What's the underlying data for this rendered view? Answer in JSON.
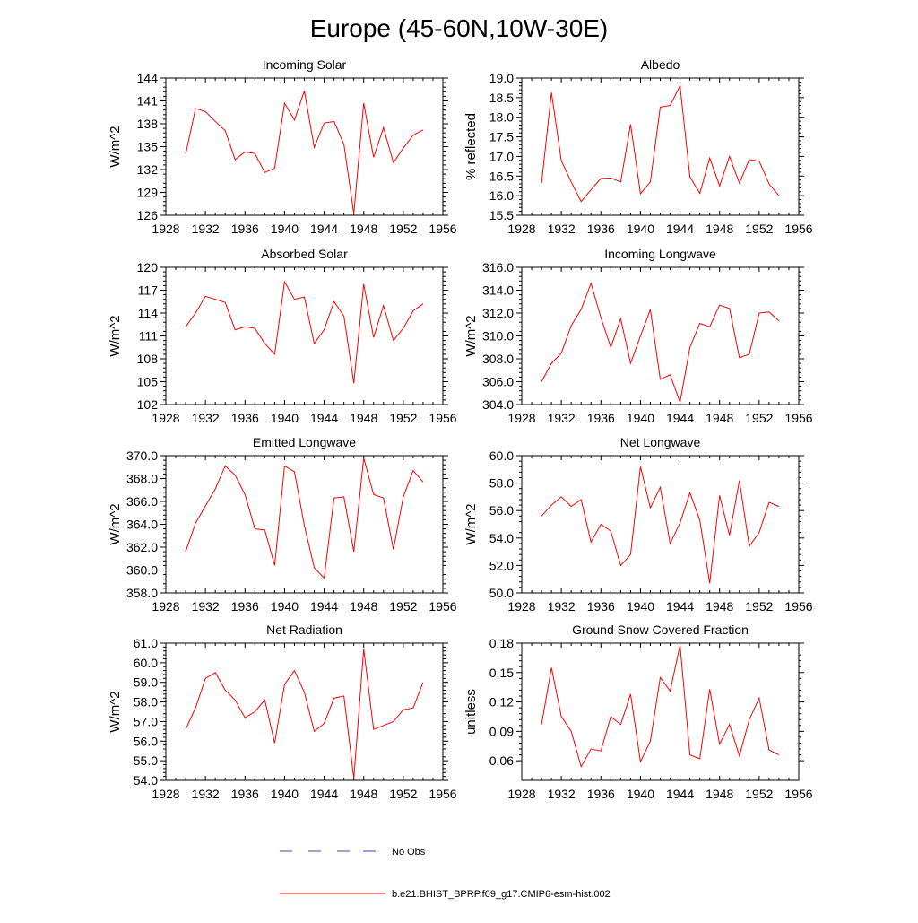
{
  "figure": {
    "title": "Europe (45-60N,10W-30E)",
    "line_color": "#ff0000",
    "obs_color": "#4040c0"
  },
  "legend": {
    "obs_label": "No Obs",
    "model_label": "b.e21.BHIST_BPRP.f09_g17.CMIP6-esm-hist.002"
  },
  "chart_data": [
    {
      "type": "line",
      "title": "Incoming Solar",
      "xlabel": "",
      "ylabel": "W/m^2",
      "xlim": [
        1928,
        1956
      ],
      "ylim": [
        126,
        144
      ],
      "xticks": [
        1928,
        1932,
        1936,
        1940,
        1944,
        1948,
        1952,
        1956
      ],
      "xtick_labels": [
        "1928",
        "1932",
        "1936",
        "1940",
        "1944",
        "1948",
        "1952",
        "1956"
      ],
      "yticks": [
        126,
        129,
        132,
        135,
        138,
        141,
        144
      ],
      "ytick_labels": [
        "126",
        "129",
        "132",
        "135",
        "138",
        "141",
        "144"
      ],
      "x": [
        1930,
        1931,
        1932,
        1933,
        1934,
        1935,
        1936,
        1937,
        1938,
        1939,
        1940,
        1941,
        1942,
        1943,
        1944,
        1945,
        1946,
        1947,
        1948,
        1949,
        1950,
        1951,
        1952,
        1953,
        1954
      ],
      "values": [
        134.0,
        140.0,
        139.6,
        138.3,
        137.1,
        133.3,
        134.3,
        134.1,
        131.6,
        132.2,
        140.7,
        138.5,
        142.3,
        134.9,
        138.1,
        138.3,
        135.3,
        126.2,
        140.7,
        133.6,
        137.5,
        132.9,
        134.8,
        136.5,
        137.2
      ]
    },
    {
      "type": "line",
      "title": "Albedo",
      "xlabel": "",
      "ylabel": "% reflected",
      "xlim": [
        1928,
        1956
      ],
      "ylim": [
        15.5,
        19.0
      ],
      "xticks": [
        1928,
        1932,
        1936,
        1940,
        1944,
        1948,
        1952,
        1956
      ],
      "xtick_labels": [
        "1928",
        "1932",
        "1936",
        "1940",
        "1944",
        "1948",
        "1952",
        "1956"
      ],
      "yticks": [
        15.5,
        16.0,
        16.5,
        17.0,
        17.5,
        18.0,
        18.5,
        19.0
      ],
      "ytick_labels": [
        "15.5",
        "16.0",
        "16.5",
        "17.0",
        "17.5",
        "18.0",
        "18.5",
        "19.0"
      ],
      "x": [
        1930,
        1931,
        1932,
        1933,
        1934,
        1935,
        1936,
        1937,
        1938,
        1939,
        1940,
        1941,
        1942,
        1943,
        1944,
        1945,
        1946,
        1947,
        1948,
        1949,
        1950,
        1951,
        1952,
        1953,
        1954
      ],
      "values": [
        16.32,
        18.63,
        16.89,
        16.35,
        15.85,
        16.15,
        16.44,
        16.45,
        16.35,
        17.82,
        16.05,
        16.35,
        18.26,
        18.3,
        18.8,
        16.48,
        16.06,
        16.96,
        16.25,
        17.0,
        16.32,
        16.92,
        16.88,
        16.3,
        16.0
      ]
    },
    {
      "type": "line",
      "title": "Absorbed Solar",
      "xlabel": "",
      "ylabel": "W/m^2",
      "xlim": [
        1928,
        1956
      ],
      "ylim": [
        102,
        120
      ],
      "xticks": [
        1928,
        1932,
        1936,
        1940,
        1944,
        1948,
        1952,
        1956
      ],
      "xtick_labels": [
        "1928",
        "1932",
        "1936",
        "1940",
        "1944",
        "1948",
        "1952",
        "1956"
      ],
      "yticks": [
        102,
        105,
        108,
        111,
        114,
        117,
        120
      ],
      "ytick_labels": [
        "102",
        "105",
        "108",
        "111",
        "114",
        "117",
        "120"
      ],
      "x": [
        1930,
        1931,
        1932,
        1933,
        1934,
        1935,
        1936,
        1937,
        1938,
        1939,
        1940,
        1941,
        1942,
        1943,
        1944,
        1945,
        1946,
        1947,
        1948,
        1949,
        1950,
        1951,
        1952,
        1953,
        1954
      ],
      "values": [
        112.2,
        114.0,
        116.2,
        115.8,
        115.4,
        111.8,
        112.2,
        112.0,
        110.0,
        108.6,
        118.1,
        115.8,
        116.1,
        110.0,
        111.8,
        115.5,
        113.6,
        104.8,
        117.8,
        110.8,
        115.0,
        110.4,
        112.0,
        114.3,
        115.2
      ]
    },
    {
      "type": "line",
      "title": "Incoming Longwave",
      "xlabel": "",
      "ylabel": "W/m^2",
      "xlim": [
        1928,
        1956
      ],
      "ylim": [
        304.0,
        316.0
      ],
      "xticks": [
        1928,
        1932,
        1936,
        1940,
        1944,
        1948,
        1952,
        1956
      ],
      "xtick_labels": [
        "1928",
        "1932",
        "1936",
        "1940",
        "1944",
        "1948",
        "1952",
        "1956"
      ],
      "yticks": [
        304.0,
        306.0,
        308.0,
        310.0,
        312.0,
        314.0,
        316.0
      ],
      "ytick_labels": [
        "304.0",
        "306.0",
        "308.0",
        "310.0",
        "312.0",
        "314.0",
        "316.0"
      ],
      "x": [
        1930,
        1931,
        1932,
        1933,
        1934,
        1935,
        1936,
        1937,
        1938,
        1939,
        1940,
        1941,
        1942,
        1943,
        1944,
        1945,
        1946,
        1947,
        1948,
        1949,
        1950,
        1951,
        1952,
        1953,
        1954
      ],
      "values": [
        306.0,
        307.6,
        308.5,
        310.9,
        312.3,
        314.6,
        311.6,
        309.0,
        311.5,
        307.6,
        310.0,
        312.3,
        306.2,
        306.6,
        304.2,
        309.0,
        311.1,
        310.8,
        312.7,
        312.4,
        308.1,
        308.4,
        312.0,
        312.1,
        311.3
      ]
    },
    {
      "type": "line",
      "title": "Emitted Longwave",
      "xlabel": "",
      "ylabel": "W/m^2",
      "xlim": [
        1928,
        1956
      ],
      "ylim": [
        358.0,
        370.0
      ],
      "xticks": [
        1928,
        1932,
        1936,
        1940,
        1944,
        1948,
        1952,
        1956
      ],
      "xtick_labels": [
        "1928",
        "1932",
        "1936",
        "1940",
        "1944",
        "1948",
        "1952",
        "1956"
      ],
      "yticks": [
        358.0,
        360.0,
        362.0,
        364.0,
        366.0,
        368.0,
        370.0
      ],
      "ytick_labels": [
        "358.0",
        "360.0",
        "362.0",
        "364.0",
        "366.0",
        "368.0",
        "370.0"
      ],
      "x": [
        1930,
        1931,
        1932,
        1933,
        1934,
        1935,
        1936,
        1937,
        1938,
        1939,
        1940,
        1941,
        1942,
        1943,
        1944,
        1945,
        1946,
        1947,
        1948,
        1949,
        1950,
        1951,
        1952,
        1953,
        1954
      ],
      "values": [
        361.6,
        364.1,
        365.6,
        367.1,
        369.1,
        368.3,
        366.6,
        363.6,
        363.5,
        360.4,
        369.1,
        368.6,
        363.9,
        360.2,
        359.3,
        366.3,
        366.4,
        361.6,
        369.8,
        366.6,
        366.3,
        361.8,
        366.4,
        368.7,
        367.7
      ]
    },
    {
      "type": "line",
      "title": "Net Longwave",
      "xlabel": "",
      "ylabel": "W/m^2",
      "xlim": [
        1928,
        1956
      ],
      "ylim": [
        50.0,
        60.0
      ],
      "xticks": [
        1928,
        1932,
        1936,
        1940,
        1944,
        1948,
        1952,
        1956
      ],
      "xtick_labels": [
        "1928",
        "1932",
        "1936",
        "1940",
        "1944",
        "1948",
        "1952",
        "1956"
      ],
      "yticks": [
        50.0,
        52.0,
        54.0,
        56.0,
        58.0,
        60.0
      ],
      "ytick_labels": [
        "50.0",
        "52.0",
        "54.0",
        "56.0",
        "58.0",
        "60.0"
      ],
      "x": [
        1930,
        1931,
        1932,
        1933,
        1934,
        1935,
        1936,
        1937,
        1938,
        1939,
        1940,
        1941,
        1942,
        1943,
        1944,
        1945,
        1946,
        1947,
        1948,
        1949,
        1950,
        1951,
        1952,
        1953,
        1954
      ],
      "values": [
        55.6,
        56.4,
        57.0,
        56.3,
        56.8,
        53.7,
        55.0,
        54.5,
        52.0,
        52.8,
        59.2,
        56.2,
        57.7,
        53.6,
        55.1,
        57.3,
        55.3,
        50.7,
        57.1,
        54.2,
        58.2,
        53.4,
        54.4,
        56.6,
        56.3
      ]
    },
    {
      "type": "line",
      "title": "Net Radiation",
      "xlabel": "",
      "ylabel": "W/m^2",
      "xlim": [
        1928,
        1956
      ],
      "ylim": [
        54.0,
        61.0
      ],
      "xticks": [
        1928,
        1932,
        1936,
        1940,
        1944,
        1948,
        1952,
        1956
      ],
      "xtick_labels": [
        "1928",
        "1932",
        "1936",
        "1940",
        "1944",
        "1948",
        "1952",
        "1956"
      ],
      "yticks": [
        54.0,
        55.0,
        56.0,
        57.0,
        58.0,
        59.0,
        60.0,
        61.0
      ],
      "ytick_labels": [
        "54.0",
        "55.0",
        "56.0",
        "57.0",
        "58.0",
        "59.0",
        "60.0",
        "61.0"
      ],
      "x": [
        1930,
        1931,
        1932,
        1933,
        1934,
        1935,
        1936,
        1937,
        1938,
        1939,
        1940,
        1941,
        1942,
        1943,
        1944,
        1945,
        1946,
        1947,
        1948,
        1949,
        1950,
        1951,
        1952,
        1953,
        1954
      ],
      "values": [
        56.6,
        57.7,
        59.2,
        59.5,
        58.6,
        58.1,
        57.2,
        57.5,
        58.1,
        55.9,
        58.9,
        59.6,
        58.5,
        56.5,
        56.9,
        58.2,
        58.3,
        54.1,
        60.7,
        56.6,
        56.8,
        57.0,
        57.6,
        57.7,
        59.0
      ]
    },
    {
      "type": "line",
      "title": "Ground Snow Covered Fraction",
      "xlabel": "",
      "ylabel": "unitless",
      "xlim": [
        1928,
        1956
      ],
      "ylim": [
        0.04,
        0.18
      ],
      "xticks": [
        1928,
        1932,
        1936,
        1940,
        1944,
        1948,
        1952,
        1956
      ],
      "xtick_labels": [
        "1928",
        "1932",
        "1936",
        "1940",
        "1944",
        "1948",
        "1952",
        "1956"
      ],
      "yticks": [
        0.06,
        0.09,
        0.12,
        0.15,
        0.18
      ],
      "ytick_labels": [
        "0.06",
        "0.09",
        "0.12",
        "0.15",
        "0.18"
      ],
      "x": [
        1930,
        1931,
        1932,
        1933,
        1934,
        1935,
        1936,
        1937,
        1938,
        1939,
        1940,
        1941,
        1942,
        1943,
        1944,
        1945,
        1946,
        1947,
        1948,
        1949,
        1950,
        1951,
        1952,
        1953,
        1954
      ],
      "values": [
        0.097,
        0.155,
        0.105,
        0.09,
        0.054,
        0.072,
        0.07,
        0.105,
        0.097,
        0.128,
        0.059,
        0.08,
        0.145,
        0.131,
        0.178,
        0.066,
        0.062,
        0.133,
        0.077,
        0.097,
        0.065,
        0.102,
        0.124,
        0.071,
        0.066
      ]
    }
  ]
}
